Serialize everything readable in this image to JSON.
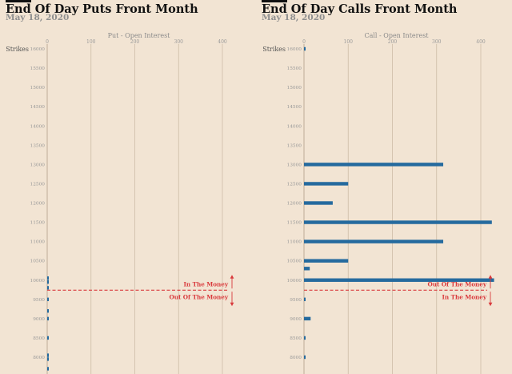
{
  "chart_data": [
    {
      "type": "bar",
      "orientation": "horizontal",
      "title": "End Of Day Puts Front Month",
      "subtitle": "May 18, 2020",
      "xlabel": "Put - Open Interest",
      "ylabel": "Strikes",
      "xlim": [
        0,
        420
      ],
      "x_ticks": [
        0,
        100,
        200,
        300,
        400
      ],
      "strike_ticks": [
        {
          "value": 8000,
          "label": "8000"
        },
        {
          "value": 8500,
          "label": "8500"
        },
        {
          "value": 9000,
          "label": "9000"
        },
        {
          "value": 9500,
          "label": "9500"
        },
        {
          "value": 10000,
          "label": "10000"
        },
        {
          "value": 10500,
          "label": "10500"
        },
        {
          "value": 11000,
          "label": "11000"
        },
        {
          "value": 11500,
          "label": "11500"
        },
        {
          "value": 12000,
          "label": "12000"
        },
        {
          "value": 12500,
          "label": "12500"
        },
        {
          "value": 13000,
          "label": "13000"
        },
        {
          "value": 13500,
          "label": "13500"
        },
        {
          "value": 14000,
          "label": "14000"
        },
        {
          "value": 14500,
          "label": "14500"
        },
        {
          "value": 15000,
          "label": "15000"
        },
        {
          "value": 15500,
          "label": "15500"
        },
        {
          "value": 16000,
          "label": "16000"
        }
      ],
      "bars": [
        {
          "strike": 7700,
          "value": 1
        },
        {
          "strike": 7950,
          "value": 2
        },
        {
          "strike": 8050,
          "value": 1
        },
        {
          "strike": 8500,
          "value": 1
        },
        {
          "strike": 9000,
          "value": 1
        },
        {
          "strike": 9200,
          "value": 1
        },
        {
          "strike": 9500,
          "value": 1
        },
        {
          "strike": 9800,
          "value": 1
        },
        {
          "strike": 9950,
          "value": 2
        },
        {
          "strike": 10050,
          "value": 1
        }
      ],
      "current_price": 9740,
      "zone_above": "In The Money",
      "zone_below": "Out Of The Money",
      "colors": {
        "bar": "#256a9e",
        "zone": "#d9393c",
        "grid": "#cdbca7"
      }
    },
    {
      "type": "bar",
      "orientation": "horizontal",
      "title": "End Of Day Calls Front Month",
      "subtitle": "May 18, 2020",
      "xlabel": "Call - Open Interest",
      "ylabel": "Strikes",
      "xlim": [
        0,
        420
      ],
      "x_ticks": [
        0,
        100,
        200,
        300,
        400
      ],
      "strike_ticks": [
        {
          "value": 8000,
          "label": "8000"
        },
        {
          "value": 8500,
          "label": "8500"
        },
        {
          "value": 9000,
          "label": "9000"
        },
        {
          "value": 9500,
          "label": "9500"
        },
        {
          "value": 10000,
          "label": "10000"
        },
        {
          "value": 10500,
          "label": "10500"
        },
        {
          "value": 11000,
          "label": "11000"
        },
        {
          "value": 11500,
          "label": "11500"
        },
        {
          "value": 12000,
          "label": "12000"
        },
        {
          "value": 12500,
          "label": "12500"
        },
        {
          "value": 13000,
          "label": "13000"
        },
        {
          "value": 13500,
          "label": "13500"
        },
        {
          "value": 14000,
          "label": "14000"
        },
        {
          "value": 14500,
          "label": "14500"
        },
        {
          "value": 15000,
          "label": "15000"
        },
        {
          "value": 15500,
          "label": "15500"
        },
        {
          "value": 16000,
          "label": "16000"
        }
      ],
      "bars": [
        {
          "strike": 16000,
          "value": 1
        },
        {
          "strike": 13000,
          "value": 315
        },
        {
          "strike": 12500,
          "value": 100
        },
        {
          "strike": 12000,
          "value": 65
        },
        {
          "strike": 11500,
          "value": 425
        },
        {
          "strike": 11000,
          "value": 315
        },
        {
          "strike": 10500,
          "value": 100
        },
        {
          "strike": 10300,
          "value": 13
        },
        {
          "strike": 10000,
          "value": 430
        },
        {
          "strike": 9500,
          "value": 2
        },
        {
          "strike": 9000,
          "value": 15
        },
        {
          "strike": 8500,
          "value": 2
        },
        {
          "strike": 8000,
          "value": 1
        }
      ],
      "current_price": 9740,
      "zone_above": "Out Of The Money",
      "zone_below": "In The Money",
      "colors": {
        "bar": "#256a9e",
        "zone": "#d9393c",
        "grid": "#cdbca7"
      }
    }
  ]
}
